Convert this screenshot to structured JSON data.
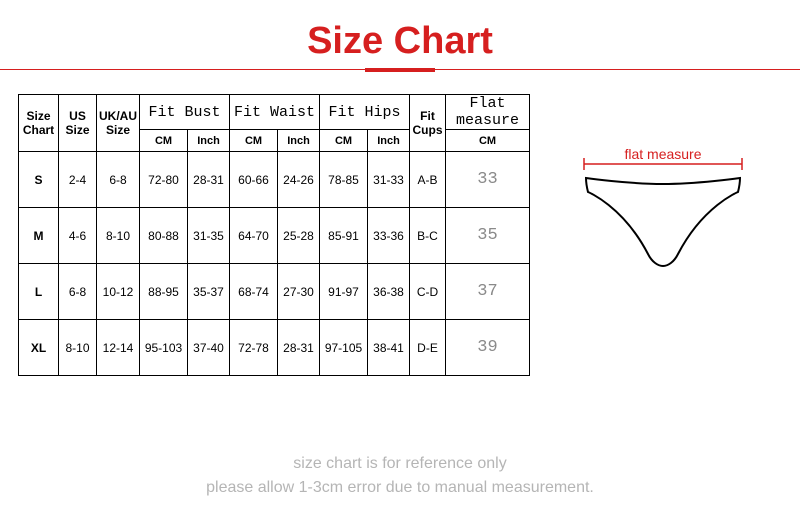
{
  "title": {
    "text": "Size Chart",
    "color": "#d61f1f",
    "underline_color": "#d61f1f",
    "rule_color": "#d61f1f"
  },
  "table": {
    "border_color": "#000000",
    "header": {
      "size_chart": "Size Chart",
      "us_size": "US Size",
      "uk_au_size": "UK/AU Size",
      "fit_bust": "Fit Bust",
      "fit_waist": "Fit Waist",
      "fit_hips": "Fit Hips",
      "fit_cups": "Fit Cups",
      "flat_measure": "Flat measure",
      "cm": "CM",
      "inch": "Inch"
    },
    "rows": [
      {
        "size": "S",
        "us": "2-4",
        "uk": "6-8",
        "bust_cm": "72-80",
        "bust_in": "28-31",
        "waist_cm": "60-66",
        "waist_in": "24-26",
        "hips_cm": "78-85",
        "hips_in": "31-33",
        "cups": "A-B",
        "flat": "33"
      },
      {
        "size": "M",
        "us": "4-6",
        "uk": "8-10",
        "bust_cm": "80-88",
        "bust_in": "31-35",
        "waist_cm": "64-70",
        "waist_in": "25-28",
        "hips_cm": "85-91",
        "hips_in": "33-36",
        "cups": "B-C",
        "flat": "35"
      },
      {
        "size": "L",
        "us": "6-8",
        "uk": "10-12",
        "bust_cm": "88-95",
        "bust_in": "35-37",
        "waist_cm": "68-74",
        "waist_in": "27-30",
        "hips_cm": "91-97",
        "hips_in": "36-38",
        "cups": "C-D",
        "flat": "37"
      },
      {
        "size": "XL",
        "us": "8-10",
        "uk": "12-14",
        "bust_cm": "95-103",
        "bust_in": "37-40",
        "waist_cm": "72-78",
        "waist_in": "28-31",
        "hips_cm": "97-105",
        "hips_in": "38-41",
        "cups": "D-E",
        "flat": "39"
      }
    ]
  },
  "diagram": {
    "label": "flat measure",
    "label_color": "#d61f1f",
    "stroke_color": "#000000"
  },
  "footer": {
    "line1": "size chart is for reference only",
    "line2": "please allow 1-3cm error due to manual measurement.",
    "color": "#b5b5b5"
  }
}
